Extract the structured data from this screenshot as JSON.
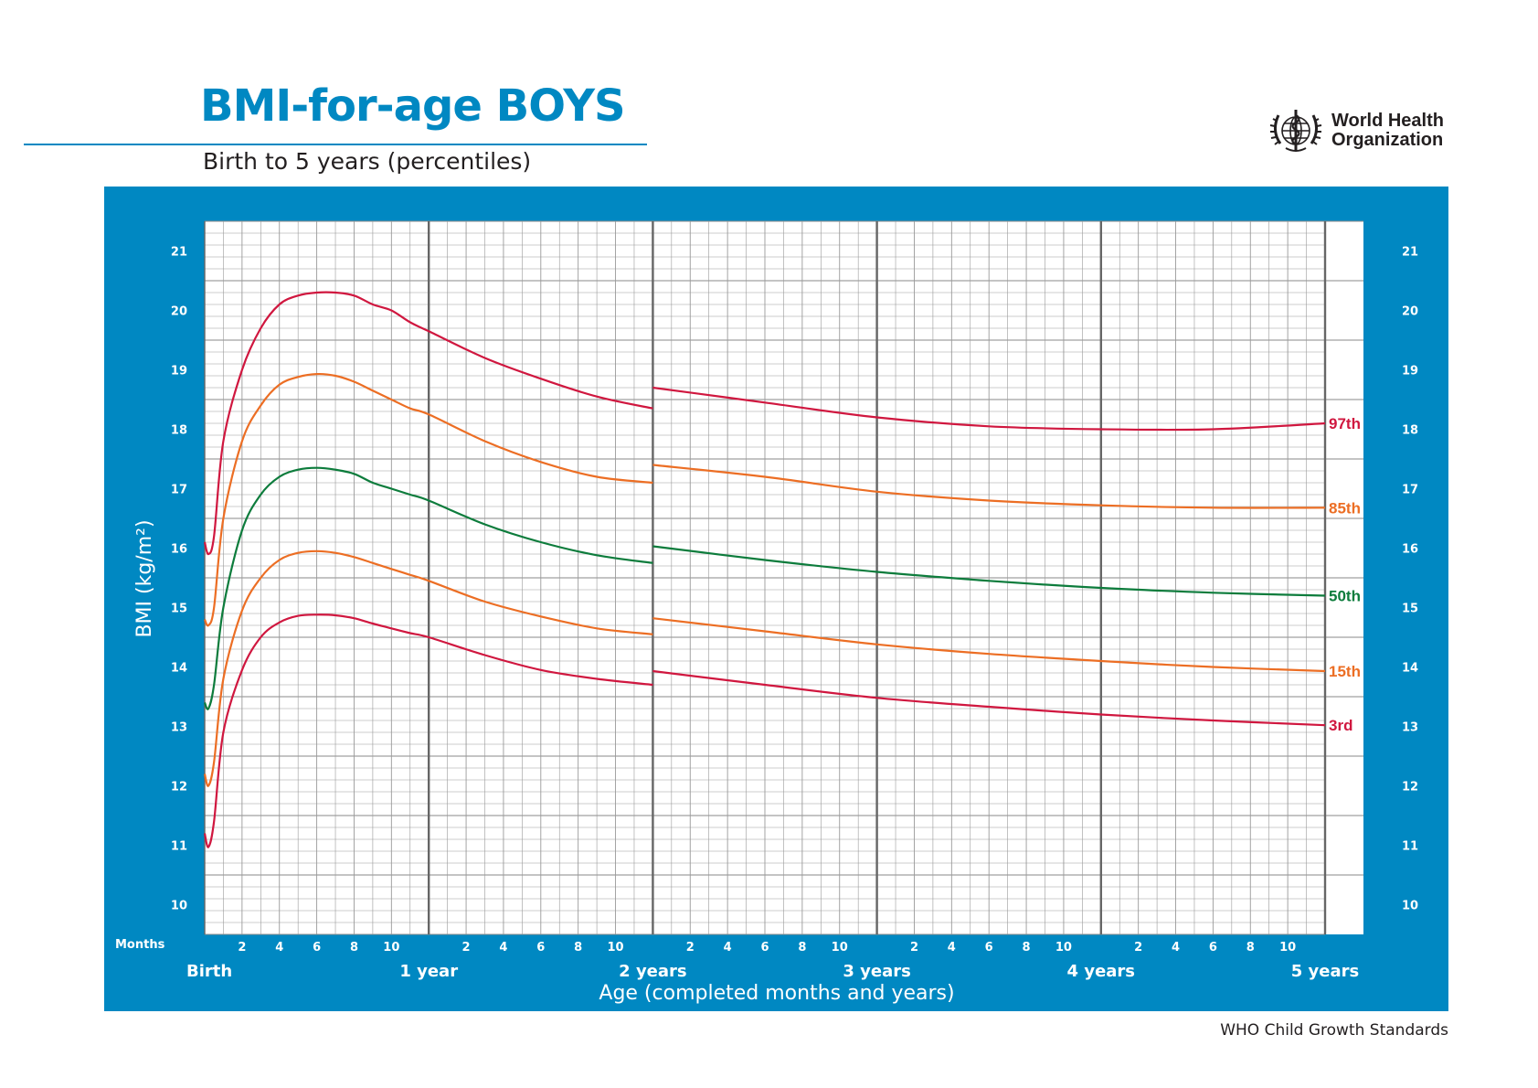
{
  "header": {
    "title": "BMI-for-age BOYS",
    "subtitle": "Birth to 5 years (percentiles)",
    "organization_line1": "World Health",
    "organization_line2": "Organization",
    "logo_icon": "who-emblem-icon"
  },
  "footer": {
    "source": "WHO Child Growth Standards"
  },
  "colors": {
    "brand_blue": "#0088c2",
    "p3_p97": "#d0173f",
    "p15_p85": "#ec6e24",
    "p50": "#0d7c3c",
    "grid": "#9a9a9a",
    "year_line": "#666666"
  },
  "chart_data": {
    "type": "line",
    "title": "BMI-for-age BOYS",
    "subtitle": "Birth to 5 years (percentiles)",
    "ylabel": "BMI (kg/m²)",
    "xlabel": "Age (completed months and years)",
    "x_unit_label": "Months",
    "xlim": [
      0,
      60
    ],
    "ylim": [
      9.5,
      21.5
    ],
    "y_ticks": [
      10,
      11,
      12,
      13,
      14,
      15,
      16,
      17,
      18,
      19,
      20,
      21
    ],
    "month_ticks": [
      2,
      4,
      6,
      8,
      10
    ],
    "year_labels": [
      "Birth",
      "1 year",
      "2 years",
      "3 years",
      "4 years",
      "5 years"
    ],
    "grid": true,
    "legend": "right-end labels",
    "series": [
      {
        "name": "97th",
        "color": "#d0173f",
        "segments": [
          {
            "x": [
              0,
              0.2,
              0.5,
              1,
              2,
              3,
              4,
              5,
              6,
              7,
              8,
              9,
              10,
              11,
              12,
              15,
              18,
              21,
              24
            ],
            "y": [
              16.1,
              15.9,
              16.2,
              17.8,
              19.0,
              19.7,
              20.1,
              20.25,
              20.3,
              20.3,
              20.25,
              20.1,
              20.0,
              19.8,
              19.65,
              19.2,
              18.85,
              18.55,
              18.35
            ]
          },
          {
            "x": [
              24,
              30,
              36,
              42,
              48,
              54,
              60
            ],
            "y": [
              18.7,
              18.45,
              18.2,
              18.05,
              18.0,
              18.0,
              18.1
            ]
          }
        ]
      },
      {
        "name": "85th",
        "color": "#ec6e24",
        "segments": [
          {
            "x": [
              0,
              0.2,
              0.5,
              1,
              2,
              3,
              4,
              5,
              6,
              7,
              8,
              9,
              10,
              11,
              12,
              15,
              18,
              21,
              24
            ],
            "y": [
              14.8,
              14.7,
              15.0,
              16.5,
              17.8,
              18.4,
              18.75,
              18.88,
              18.93,
              18.9,
              18.8,
              18.65,
              18.5,
              18.35,
              18.25,
              17.8,
              17.45,
              17.2,
              17.1
            ]
          },
          {
            "x": [
              24,
              30,
              36,
              42,
              48,
              54,
              60
            ],
            "y": [
              17.4,
              17.2,
              16.95,
              16.8,
              16.72,
              16.68,
              16.68
            ]
          }
        ]
      },
      {
        "name": "50th",
        "color": "#0d7c3c",
        "segments": [
          {
            "x": [
              0,
              0.2,
              0.5,
              1,
              2,
              3,
              4,
              5,
              6,
              7,
              8,
              9,
              10,
              11,
              12,
              15,
              18,
              21,
              24
            ],
            "y": [
              13.4,
              13.3,
              13.7,
              15.0,
              16.3,
              16.9,
              17.2,
              17.32,
              17.35,
              17.32,
              17.25,
              17.1,
              17.0,
              16.9,
              16.8,
              16.4,
              16.1,
              15.88,
              15.75
            ]
          },
          {
            "x": [
              24,
              30,
              36,
              42,
              48,
              54,
              60
            ],
            "y": [
              16.03,
              15.8,
              15.6,
              15.45,
              15.33,
              15.25,
              15.2
            ]
          }
        ]
      },
      {
        "name": "15th",
        "color": "#ec6e24",
        "segments": [
          {
            "x": [
              0,
              0.2,
              0.5,
              1,
              2,
              3,
              4,
              5,
              6,
              7,
              8,
              9,
              10,
              11,
              12,
              15,
              18,
              21,
              24
            ],
            "y": [
              12.2,
              12.0,
              12.4,
              13.8,
              14.95,
              15.5,
              15.8,
              15.92,
              15.95,
              15.92,
              15.85,
              15.75,
              15.65,
              15.55,
              15.45,
              15.1,
              14.85,
              14.65,
              14.55
            ]
          },
          {
            "x": [
              24,
              30,
              36,
              42,
              48,
              54,
              60
            ],
            "y": [
              14.82,
              14.6,
              14.38,
              14.22,
              14.1,
              14.0,
              13.93
            ]
          }
        ]
      },
      {
        "name": "3rd",
        "color": "#d0173f",
        "segments": [
          {
            "x": [
              0,
              0.2,
              0.5,
              1,
              2,
              3,
              4,
              5,
              6,
              7,
              8,
              9,
              10,
              11,
              12,
              15,
              18,
              21,
              24
            ],
            "y": [
              11.2,
              10.97,
              11.4,
              12.9,
              13.95,
              14.5,
              14.75,
              14.86,
              14.88,
              14.87,
              14.82,
              14.73,
              14.65,
              14.57,
              14.5,
              14.2,
              13.95,
              13.8,
              13.7
            ]
          },
          {
            "x": [
              24,
              30,
              36,
              42,
              48,
              54,
              60
            ],
            "y": [
              13.93,
              13.7,
              13.48,
              13.33,
              13.2,
              13.1,
              13.02
            ]
          }
        ]
      }
    ]
  }
}
